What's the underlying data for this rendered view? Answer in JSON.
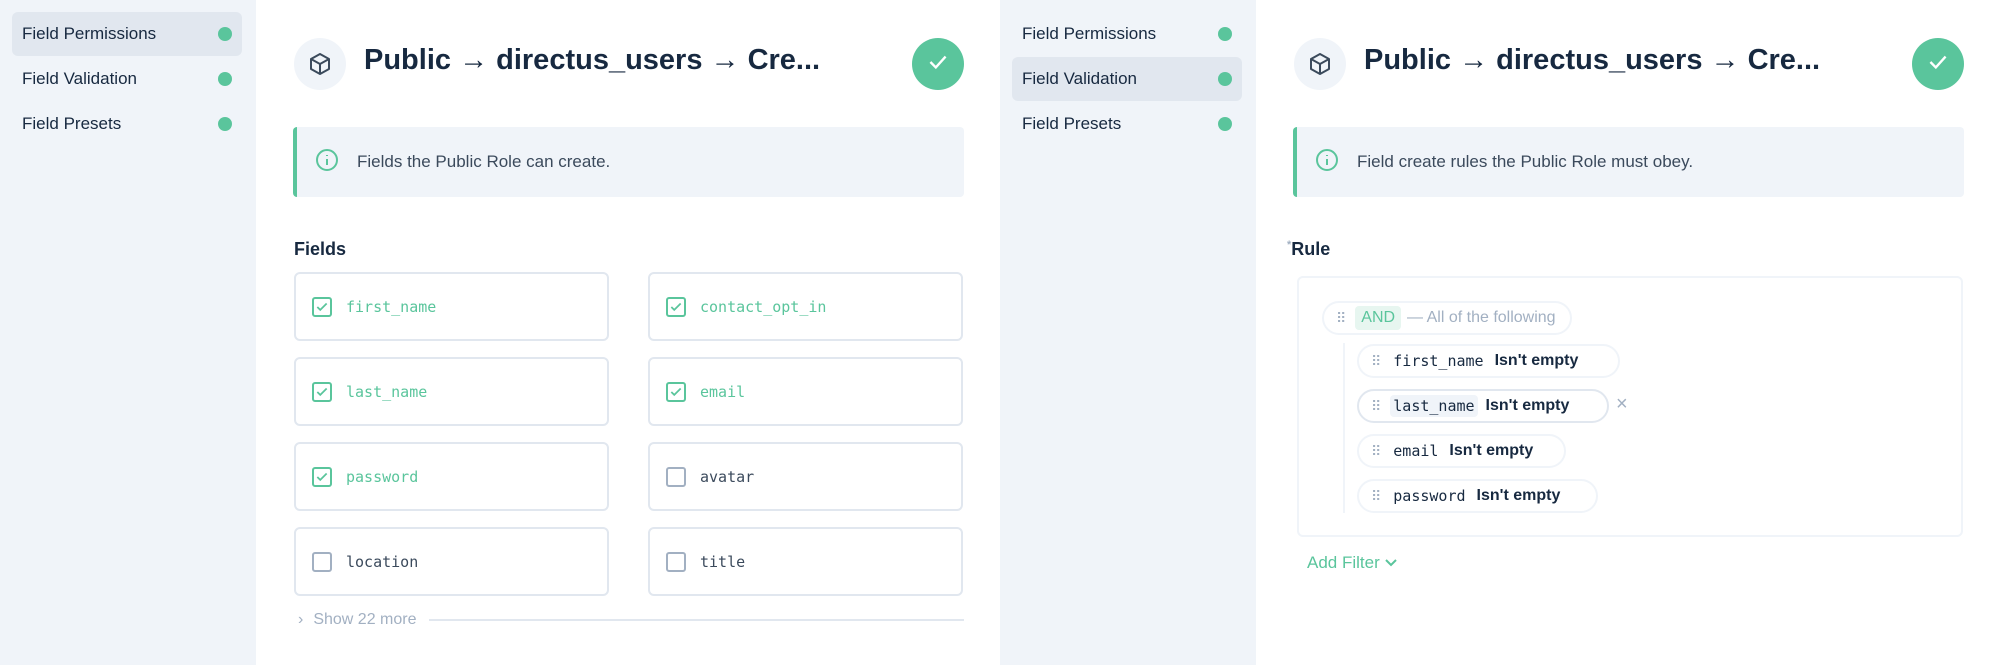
{
  "title": "Public → directus_users → Cre...",
  "accent": "#5ac59c",
  "sidebar": {
    "items": [
      {
        "label": "Field Permissions"
      },
      {
        "label": "Field Validation"
      },
      {
        "label": "Field Presets"
      }
    ]
  },
  "left": {
    "active": "Field Permissions",
    "notice": "Fields the Public Role can create.",
    "fields_label": "Fields",
    "fields": [
      {
        "name": "first_name",
        "checked": true
      },
      {
        "name": "contact_opt_in",
        "checked": true
      },
      {
        "name": "last_name",
        "checked": true
      },
      {
        "name": "email",
        "checked": true
      },
      {
        "name": "password",
        "checked": true
      },
      {
        "name": "avatar",
        "checked": false
      },
      {
        "name": "location",
        "checked": false
      },
      {
        "name": "title",
        "checked": false
      }
    ],
    "show_more": "Show 22 more"
  },
  "right": {
    "active": "Field Validation",
    "notice": "Field create rules the Public Role must obey.",
    "rule_label": "Rule",
    "required_mark": "*",
    "group": {
      "op": "AND",
      "desc": "— All of the following"
    },
    "conditions": [
      {
        "field": "first_name",
        "op": "Isn't empty"
      },
      {
        "field": "last_name",
        "op": "Isn't empty"
      },
      {
        "field": "email",
        "op": "Isn't empty"
      },
      {
        "field": "password",
        "op": "Isn't empty"
      }
    ],
    "add_filter": "Add Filter"
  }
}
